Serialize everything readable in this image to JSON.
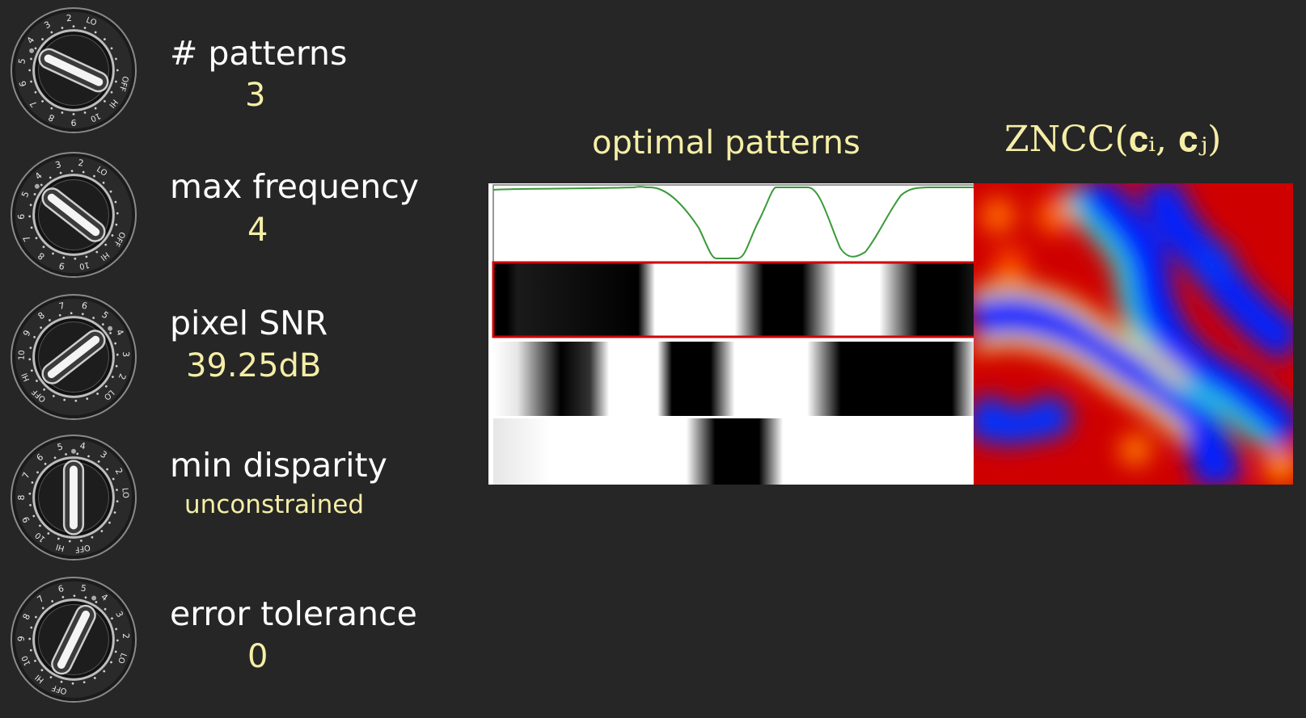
{
  "parameters": [
    {
      "label": "# patterns",
      "value": "3",
      "knob_level": 0.25
    },
    {
      "label": "max frequency",
      "value": "4",
      "knob_level": 0.3
    },
    {
      "label": "pixel SNR",
      "value": "39.25dB",
      "knob_level": 0.7
    },
    {
      "label": "min disparity",
      "value": "unconstrained",
      "knob_level": 0.5
    },
    {
      "label": "error tolerance",
      "value": "0",
      "knob_level": 0.6
    }
  ],
  "knob_dial": {
    "marks": [
      "OFF",
      "HI",
      "10",
      "9",
      "8",
      "7",
      "6",
      "5",
      "4",
      "3",
      "2",
      "LO"
    ]
  },
  "figure": {
    "left_title": "optimal patterns",
    "right_title": "ZNCC(c_i, c_j)",
    "right_title_display": "ZNCC(𝐜ᵢ, 𝐜ⱼ)"
  },
  "colors": {
    "background": "#262626",
    "label": "#ffffff",
    "value": "#f5eea6",
    "curve": "#3a9a3a",
    "highlight": "#d10000"
  }
}
